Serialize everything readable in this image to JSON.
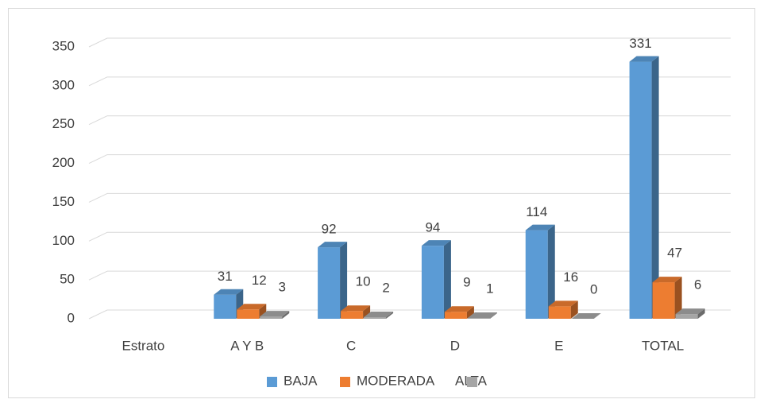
{
  "chart_data": {
    "type": "bar3d",
    "categories": [
      "Estrato",
      "A Y B",
      "C",
      "D",
      "E",
      "TOTAL"
    ],
    "series": [
      {
        "name": "BAJA",
        "color": "#5b9bd5",
        "values": [
          null,
          31,
          92,
          94,
          114,
          331
        ]
      },
      {
        "name": "MODERADA",
        "color": "#ed7d31",
        "values": [
          null,
          12,
          10,
          9,
          16,
          47
        ]
      },
      {
        "name": "ALTA",
        "color": "#a5a5a5",
        "values": [
          null,
          3,
          2,
          1,
          0,
          6
        ]
      }
    ],
    "ylim": [
      0,
      350
    ],
    "yticks": [
      0,
      50,
      100,
      150,
      200,
      250,
      300,
      350
    ],
    "grid": true,
    "legend": "bottom"
  }
}
